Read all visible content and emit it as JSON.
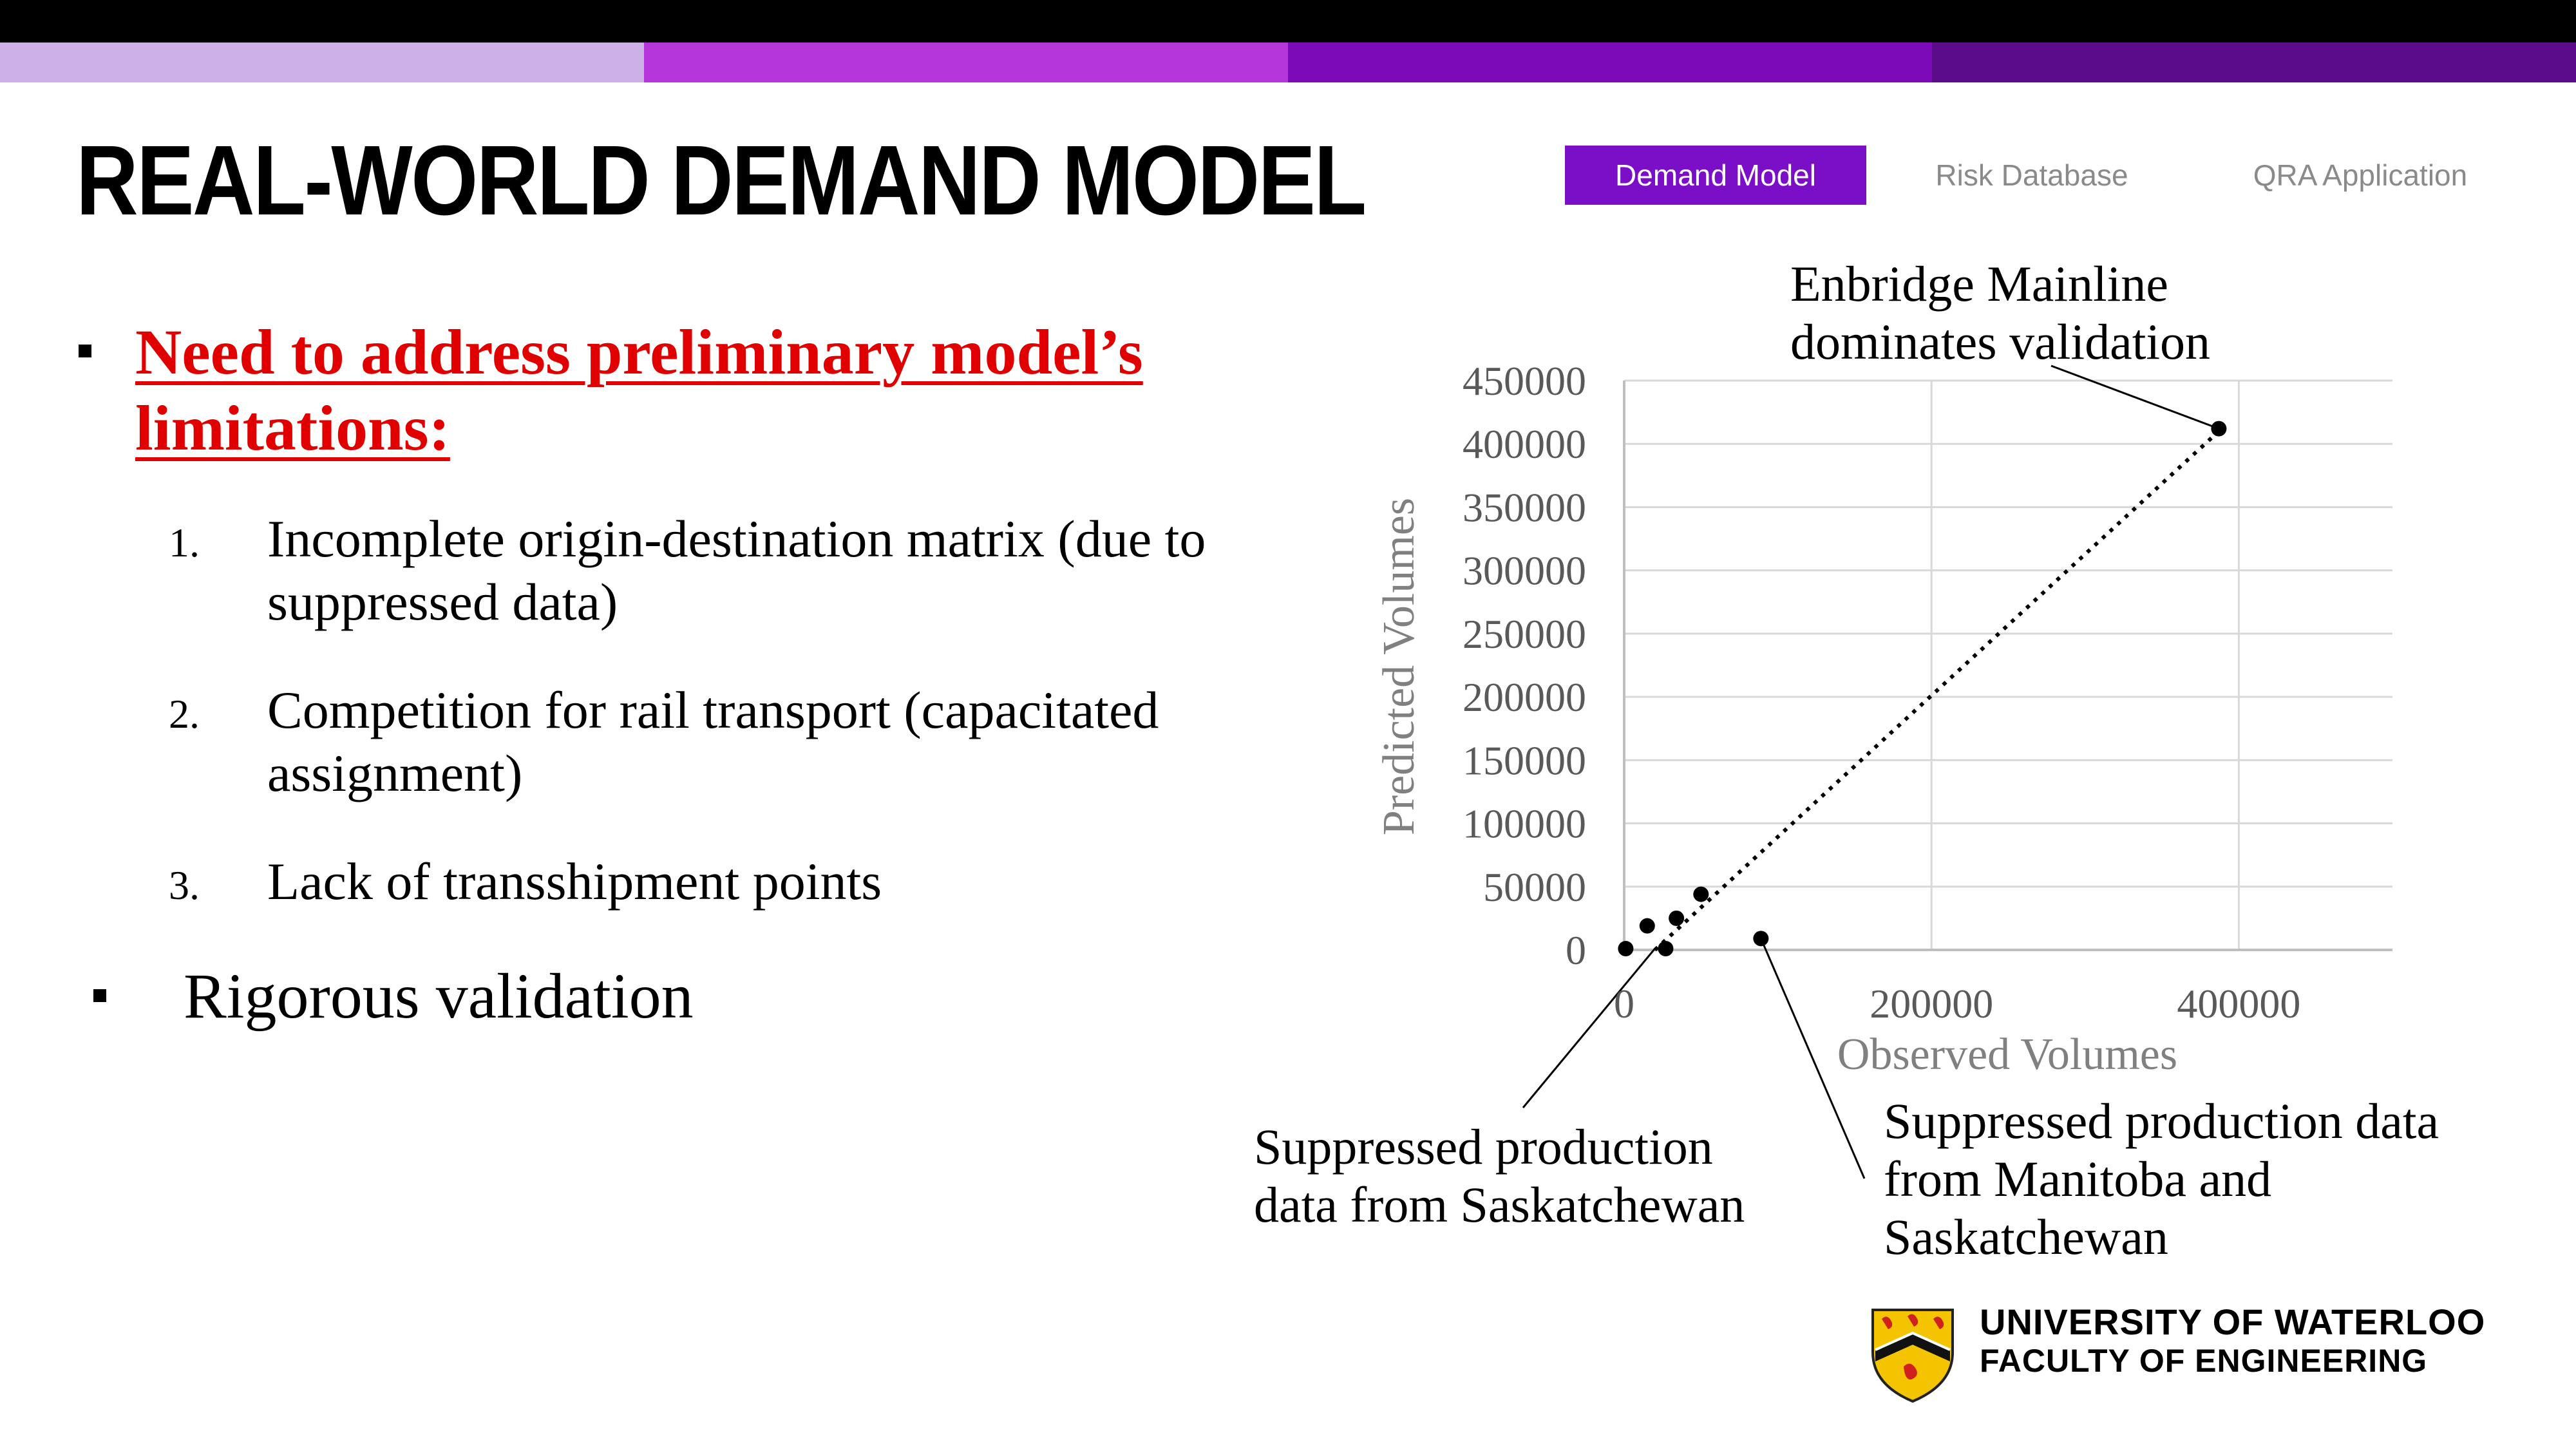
{
  "header": {
    "title": "REAL-WORLD DEMAND MODEL",
    "stripe_colors": [
      "#cdb1e6",
      "#b536da",
      "#7c0ab8",
      "#5a0c8a"
    ]
  },
  "tabs": [
    {
      "label": "Demand Model",
      "active": true
    },
    {
      "label": "Risk Database",
      "active": false
    },
    {
      "label": "QRA Application",
      "active": false
    }
  ],
  "content": {
    "main_bullet": "Need to address preliminary model’s limitations:",
    "items": [
      {
        "number": "1.",
        "text": "Incomplete origin-destination matrix (due to suppressed data)"
      },
      {
        "number": "2.",
        "text": "Competition for rail transport (capacitated assignment)"
      },
      {
        "number": "3.",
        "text": "Lack of transshipment points"
      }
    ],
    "second_bullet": "Rigorous validation"
  },
  "chart_data": {
    "type": "scatter",
    "title": "",
    "xlabel": "Observed Volumes",
    "ylabel": "Predicted Volumes",
    "xlim": [
      0,
      500000
    ],
    "ylim": [
      0,
      450000
    ],
    "x_ticks": [
      0,
      200000,
      400000
    ],
    "x_tick_labels": [
      "0",
      "200000",
      "400000"
    ],
    "y_ticks": [
      0,
      50000,
      100000,
      150000,
      200000,
      250000,
      300000,
      350000,
      400000,
      450000
    ],
    "y_tick_labels": [
      "0",
      "50000",
      "100000",
      "150000",
      "200000",
      "250000",
      "300000",
      "350000",
      "400000",
      "450000"
    ],
    "grid": true,
    "marker_color": "#000000",
    "points": [
      {
        "x": 1000,
        "y": 1000
      },
      {
        "x": 15000,
        "y": 19000
      },
      {
        "x": 27000,
        "y": 1000
      },
      {
        "x": 34000,
        "y": 25000
      },
      {
        "x": 50000,
        "y": 44000
      },
      {
        "x": 89000,
        "y": 9000
      },
      {
        "x": 387000,
        "y": 412000
      }
    ],
    "trendline": {
      "style": "dotted",
      "from": [
        20000,
        0
      ],
      "to": [
        387000,
        410000
      ]
    },
    "annotations": [
      {
        "text": "Enbridge Mainline dominates validation",
        "lines": [
          "Enbridge Mainline",
          "dominates validation"
        ],
        "target": [
          387000,
          412000
        ]
      },
      {
        "text": "Suppressed production data from Saskatchewan",
        "lines": [
          "Suppressed production",
          "data from Saskatchewan"
        ],
        "target": [
          20000,
          1000
        ]
      },
      {
        "text": "Suppressed production data from Manitoba and Saskatchewan",
        "lines": [
          "Suppressed production data",
          "from Manitoba and",
          "Saskatchewan"
        ],
        "target": [
          89000,
          9000
        ]
      }
    ]
  },
  "footer": {
    "university": "UNIVERSITY OF WATERLOO",
    "faculty": "FACULTY OF ENGINEERING",
    "logo_icon": "waterloo-crest-icon"
  }
}
